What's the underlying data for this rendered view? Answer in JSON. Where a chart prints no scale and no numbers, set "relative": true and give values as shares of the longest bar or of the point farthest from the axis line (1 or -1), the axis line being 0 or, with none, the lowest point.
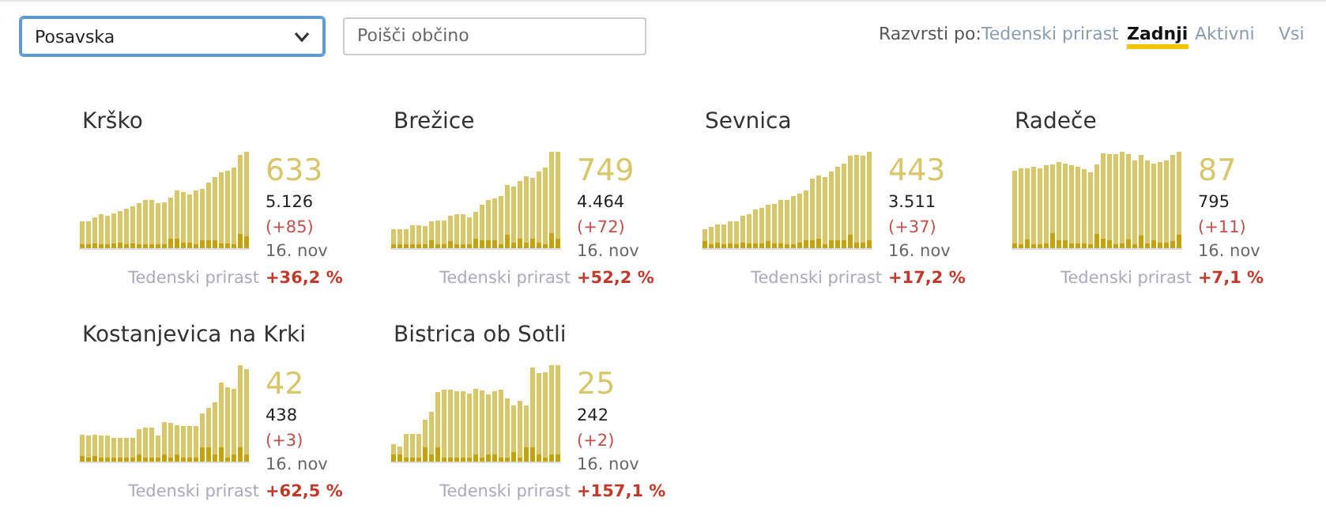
{
  "chart_data": [
    {
      "type": "other",
      "annotations": [
        "Posavska",
        "Poišči občino",
        "Razvrsti po:",
        "Tedenski prirast",
        "Zadnji",
        "Aktivni",
        "Vsi"
      ]
    },
    {
      "type": "bar",
      "title": "Krško",
      "stacked": true,
      "relative": true,
      "categories": [
        null,
        null,
        null,
        null,
        null,
        null,
        null,
        null,
        null,
        null,
        null,
        null,
        null,
        null,
        null,
        null,
        null,
        null,
        null,
        null,
        null,
        null,
        null,
        null,
        null,
        null,
        null
      ],
      "series": [
        {
          "color": "#c4a20a",
          "values": [
            0.04,
            0.04,
            0.05,
            0.04,
            0.04,
            0.05,
            0.06,
            0.04,
            0.05,
            0.04,
            0.04,
            0.04,
            0.04,
            0.04,
            0.1,
            0.1,
            0.06,
            0.06,
            0.04,
            0.08,
            0.08,
            0.08,
            0.05,
            0.05,
            0.04,
            0.15,
            0.12
          ]
        },
        {
          "color": "#d8c66b",
          "values": [
            0.24,
            0.24,
            0.27,
            0.31,
            0.3,
            0.31,
            0.33,
            0.37,
            0.39,
            0.43,
            0.46,
            0.46,
            0.43,
            0.44,
            0.43,
            0.5,
            0.52,
            0.5,
            0.56,
            0.54,
            0.6,
            0.66,
            0.74,
            0.76,
            0.8,
            0.82,
            0.88
          ]
        }
      ],
      "annotations": [
        "633",
        "5.126",
        "(+85)",
        "16. nov",
        "Tedenski prirast",
        "+36,2 %"
      ]
    },
    {
      "type": "bar",
      "title": "Brežice",
      "stacked": true,
      "relative": true,
      "categories": [
        null,
        null,
        null,
        null,
        null,
        null,
        null,
        null,
        null,
        null,
        null,
        null,
        null,
        null,
        null,
        null,
        null,
        null,
        null,
        null,
        null,
        null,
        null,
        null,
        null,
        null,
        null
      ],
      "series": [
        {
          "color": "#c4a20a",
          "values": [
            0.04,
            0.04,
            0.04,
            0.04,
            0.04,
            0.04,
            0.08,
            0.04,
            0.04,
            0.07,
            0.04,
            0.04,
            0.04,
            0.1,
            0.08,
            0.08,
            0.08,
            0.04,
            0.14,
            0.06,
            0.1,
            0.06,
            0.1,
            0.06,
            0.04,
            0.16,
            0.1
          ]
        },
        {
          "color": "#d8c66b",
          "values": [
            0.16,
            0.16,
            0.16,
            0.2,
            0.2,
            0.19,
            0.2,
            0.25,
            0.25,
            0.27,
            0.31,
            0.31,
            0.28,
            0.28,
            0.37,
            0.42,
            0.44,
            0.5,
            0.52,
            0.58,
            0.6,
            0.69,
            0.63,
            0.74,
            0.8,
            0.84,
            0.9
          ]
        }
      ],
      "annotations": [
        "749",
        "4.464",
        "(+72)",
        "16. nov",
        "Tedenski prirast",
        "+52,2 %"
      ]
    },
    {
      "type": "bar",
      "title": "Sevnica",
      "stacked": true,
      "relative": true,
      "categories": [
        null,
        null,
        null,
        null,
        null,
        null,
        null,
        null,
        null,
        null,
        null,
        null,
        null,
        null,
        null,
        null,
        null,
        null,
        null,
        null,
        null,
        null,
        null,
        null,
        null,
        null,
        null
      ],
      "series": [
        {
          "color": "#c4a20a",
          "values": [
            0.07,
            0.04,
            0.06,
            0.04,
            0.05,
            0.04,
            0.06,
            0.05,
            0.05,
            0.05,
            0.07,
            0.05,
            0.05,
            0.04,
            0.04,
            0.06,
            0.08,
            0.08,
            0.1,
            0.04,
            0.08,
            0.08,
            0.08,
            0.14,
            0.06,
            0.06,
            0.08
          ]
        },
        {
          "color": "#d8c66b",
          "values": [
            0.13,
            0.18,
            0.19,
            0.21,
            0.23,
            0.24,
            0.28,
            0.3,
            0.35,
            0.37,
            0.38,
            0.41,
            0.45,
            0.46,
            0.5,
            0.51,
            0.52,
            0.64,
            0.66,
            0.7,
            0.72,
            0.77,
            0.8,
            0.82,
            0.91,
            0.9,
            0.92
          ]
        }
      ],
      "annotations": [
        "443",
        "3.511",
        "(+37)",
        "16. nov",
        "Tedenski prirast",
        "+17,2 %"
      ]
    },
    {
      "type": "bar",
      "title": "Radeče",
      "stacked": true,
      "relative": true,
      "categories": [
        null,
        null,
        null,
        null,
        null,
        null,
        null,
        null,
        null,
        null,
        null,
        null,
        null,
        null,
        null,
        null,
        null,
        null,
        null,
        null,
        null,
        null,
        null,
        null,
        null,
        null,
        null
      ],
      "series": [
        {
          "color": "#c4a20a",
          "values": [
            0.05,
            0.04,
            0.09,
            0.04,
            0.04,
            0.05,
            0.16,
            0.08,
            0.08,
            0.05,
            0.05,
            0.05,
            0.04,
            0.15,
            0.1,
            0.08,
            0.04,
            0.05,
            0.09,
            0.04,
            0.13,
            0.05,
            0.08,
            0.06,
            0.06,
            0.07,
            0.14
          ]
        },
        {
          "color": "#d8c66b",
          "values": [
            0.76,
            0.79,
            0.74,
            0.81,
            0.79,
            0.81,
            0.71,
            0.82,
            0.8,
            0.81,
            0.8,
            0.77,
            0.75,
            0.72,
            0.89,
            0.9,
            0.94,
            0.95,
            0.89,
            0.87,
            0.84,
            0.86,
            0.8,
            0.84,
            0.85,
            0.9,
            0.86
          ]
        }
      ],
      "annotations": [
        "87",
        "795",
        "(+11)",
        "16. nov",
        "Tedenski prirast",
        "+7,1 %"
      ]
    },
    {
      "type": "bar",
      "title": "Kostanjevica na Krki",
      "stacked": true,
      "relative": true,
      "categories": [
        null,
        null,
        null,
        null,
        null,
        null,
        null,
        null,
        null,
        null,
        null,
        null,
        null,
        null,
        null,
        null,
        null,
        null,
        null,
        null,
        null,
        null,
        null,
        null,
        null,
        null,
        null
      ],
      "series": [
        {
          "color": "#c4a20a",
          "values": [
            0.06,
            0.04,
            0.06,
            0.04,
            0.04,
            0.04,
            0.04,
            0.04,
            0.04,
            0.07,
            0.04,
            0.04,
            0.04,
            0.07,
            0.04,
            0.07,
            0.04,
            0.04,
            0.04,
            0.15,
            0.15,
            0.07,
            0.15,
            0.04,
            0.07,
            0.15,
            0.07
          ]
        },
        {
          "color": "#d8c66b",
          "values": [
            0.22,
            0.23,
            0.22,
            0.23,
            0.23,
            0.21,
            0.21,
            0.21,
            0.21,
            0.27,
            0.31,
            0.31,
            0.23,
            0.34,
            0.36,
            0.31,
            0.33,
            0.33,
            0.33,
            0.35,
            0.41,
            0.55,
            0.67,
            0.73,
            0.69,
            0.85,
            0.89
          ]
        }
      ],
      "annotations": [
        "42",
        "438",
        "(+3)",
        "16. nov",
        "Tedenski prirast",
        "+62,5 %"
      ]
    },
    {
      "type": "bar",
      "title": "Bistrica ob Sotli",
      "stacked": true,
      "relative": true,
      "categories": [
        null,
        null,
        null,
        null,
        null,
        null,
        null,
        null,
        null,
        null,
        null,
        null,
        null,
        null,
        null,
        null,
        null,
        null,
        null,
        null,
        null,
        null,
        null,
        null,
        null,
        null,
        null
      ],
      "series": [
        {
          "color": "#c4a20a",
          "values": [
            0.07,
            0.07,
            0.04,
            0.04,
            0.04,
            0.15,
            0.07,
            0.15,
            0.04,
            0.04,
            0.04,
            0.04,
            0.04,
            0.07,
            0.04,
            0.07,
            0.07,
            0.04,
            0.04,
            0.1,
            0.04,
            0.15,
            0.15,
            0.07,
            0.04,
            0.07,
            0.07
          ]
        },
        {
          "color": "#d8c66b",
          "values": [
            0.11,
            0.09,
            0.25,
            0.25,
            0.25,
            0.29,
            0.45,
            0.57,
            0.71,
            0.71,
            0.69,
            0.69,
            0.67,
            0.69,
            0.7,
            0.63,
            0.66,
            0.71,
            0.62,
            0.48,
            0.59,
            0.43,
            0.83,
            0.85,
            0.89,
            0.93,
            0.93
          ]
        }
      ],
      "annotations": [
        "25",
        "242",
        "(+2)",
        "16. nov",
        "Tedenski prirast",
        "+157,1 %"
      ]
    }
  ]
}
